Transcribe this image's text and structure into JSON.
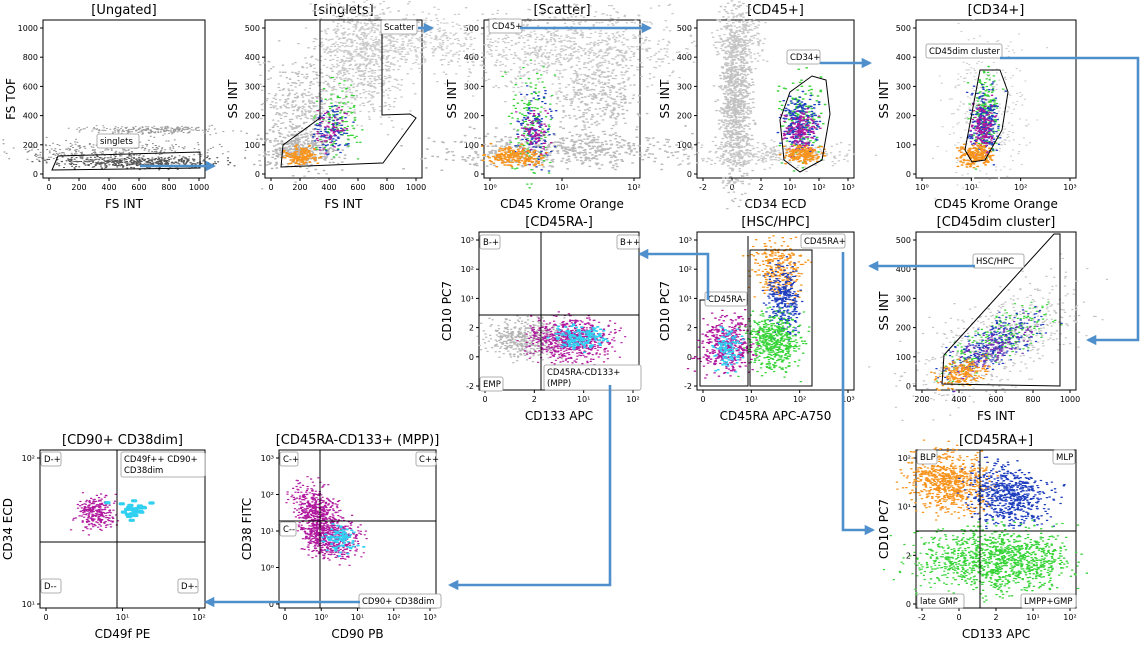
{
  "plots": [
    {
      "id": "ungated",
      "title": "[Ungated]",
      "xlabel": "FS INT",
      "ylabel": "FS TOF",
      "xticks": [
        "0",
        "200",
        "400",
        "600",
        "800",
        "1000"
      ],
      "yticks": [
        "0",
        "200",
        "400",
        "600",
        "800",
        "1000"
      ],
      "gates": [
        "singlets"
      ]
    },
    {
      "id": "singlets",
      "title": "[singlets]",
      "xlabel": "FS INT",
      "ylabel": "SS INT",
      "xticks": [
        "0",
        "200",
        "400",
        "600",
        "800",
        "1000"
      ],
      "yticks": [
        "0",
        "100",
        "200",
        "300",
        "400",
        "500"
      ],
      "gates": [
        "Scatter"
      ]
    },
    {
      "id": "scatter",
      "title": "[Scatter]",
      "xlabel": "CD45 Krome Orange",
      "ylabel": "SS INT",
      "xticks": [
        "10⁰",
        "10¹",
        "10²"
      ],
      "yticks": [
        "0",
        "100",
        "200",
        "300",
        "400",
        "500"
      ],
      "gates": [
        "CD45+"
      ]
    },
    {
      "id": "cd45pos",
      "title": "[CD45+]",
      "xlabel": "CD34 ECD",
      "ylabel": "SS INT",
      "xticks": [
        "-2",
        "0",
        "2",
        "10¹",
        "10²",
        "10³"
      ],
      "yticks": [
        "0",
        "100",
        "200",
        "300",
        "400",
        "500"
      ],
      "gates": [
        "CD34+"
      ]
    },
    {
      "id": "cd34pos",
      "title": "[CD34+]",
      "xlabel": "CD45 Krome Orange",
      "ylabel": "SS INT",
      "xticks": [
        "10⁰",
        "10¹",
        "10²",
        "10³"
      ],
      "yticks": [
        "0",
        "100",
        "200",
        "300",
        "400",
        "500"
      ],
      "gates": [
        "CD45dim cluster"
      ]
    },
    {
      "id": "cd45dim",
      "title": "[CD45dim cluster]",
      "xlabel": "FS INT",
      "ylabel": "SS INT",
      "xticks": [
        "200",
        "400",
        "600",
        "800",
        "1000"
      ],
      "yticks": [
        "0",
        "100",
        "200",
        "300",
        "400",
        "500"
      ],
      "gates": [
        "HSC/HPC"
      ]
    },
    {
      "id": "hsc",
      "title": "[HSC/HPC]",
      "xlabel": "CD45RA APC-A750",
      "ylabel": "CD10 PC7",
      "xticks": [
        "0",
        "10¹",
        "10²",
        "10³"
      ],
      "yticks": [
        "-2",
        "0",
        "2",
        "10¹",
        "10²",
        "10³"
      ],
      "gates": [
        "CD45RA-",
        "CD45RA+"
      ]
    },
    {
      "id": "cd45raneg",
      "title": "[CD45RA-]",
      "xlabel": "CD133 APC",
      "ylabel": "CD10 PC7",
      "xticks": [
        "0",
        "2",
        "10¹",
        "10²"
      ],
      "yticks": [
        "-2",
        "0",
        "2",
        "10¹",
        "10²",
        "10³"
      ],
      "gates": [
        "B-+",
        "B++",
        "EMP",
        "CD45RA-CD133+\n(MPP)"
      ]
    },
    {
      "id": "cd45rapos",
      "title": "[CD45RA+]",
      "xlabel": "CD133 APC",
      "ylabel": "CD10 PC7",
      "xticks": [
        "-2",
        "0",
        "2",
        "10¹",
        "10²"
      ],
      "yticks": [
        "0",
        "2",
        "10¹",
        "10²"
      ],
      "gates": [
        "BLP",
        "MLP",
        "late GMP",
        "LMPP+GMP"
      ]
    },
    {
      "id": "mpp",
      "title": "[CD45RA-CD133+ (MPP)]",
      "xlabel": "CD90 PB",
      "ylabel": "CD38 FITC",
      "xticks": [
        "0",
        "10⁰",
        "10¹",
        "10²",
        "10³"
      ],
      "yticks": [
        "0",
        "10⁰",
        "10¹",
        "10²",
        "10³"
      ],
      "gates": [
        "C-+",
        "C++",
        "C--",
        "CD90+ CD38dim"
      ]
    },
    {
      "id": "cd90",
      "title": "[CD90+ CD38dim]",
      "xlabel": "CD49f PE",
      "ylabel": "CD34 ECD",
      "xticks": [
        "0",
        "10¹",
        "10²"
      ],
      "yticks": [
        "10¹",
        "10²"
      ],
      "gates": [
        "D-+",
        "CD49f++ CD90+\nCD38dim",
        "D--",
        "D+-"
      ]
    }
  ],
  "colors": {
    "background_events": "#b3b3b3",
    "orange": "#f7941d",
    "blue": "#1f3fbf",
    "green": "#39d43a",
    "magenta": "#b0199e",
    "cyan": "#2fd0f0",
    "purple": "#7a2bb5",
    "arrow": "#4f8fcc"
  }
}
